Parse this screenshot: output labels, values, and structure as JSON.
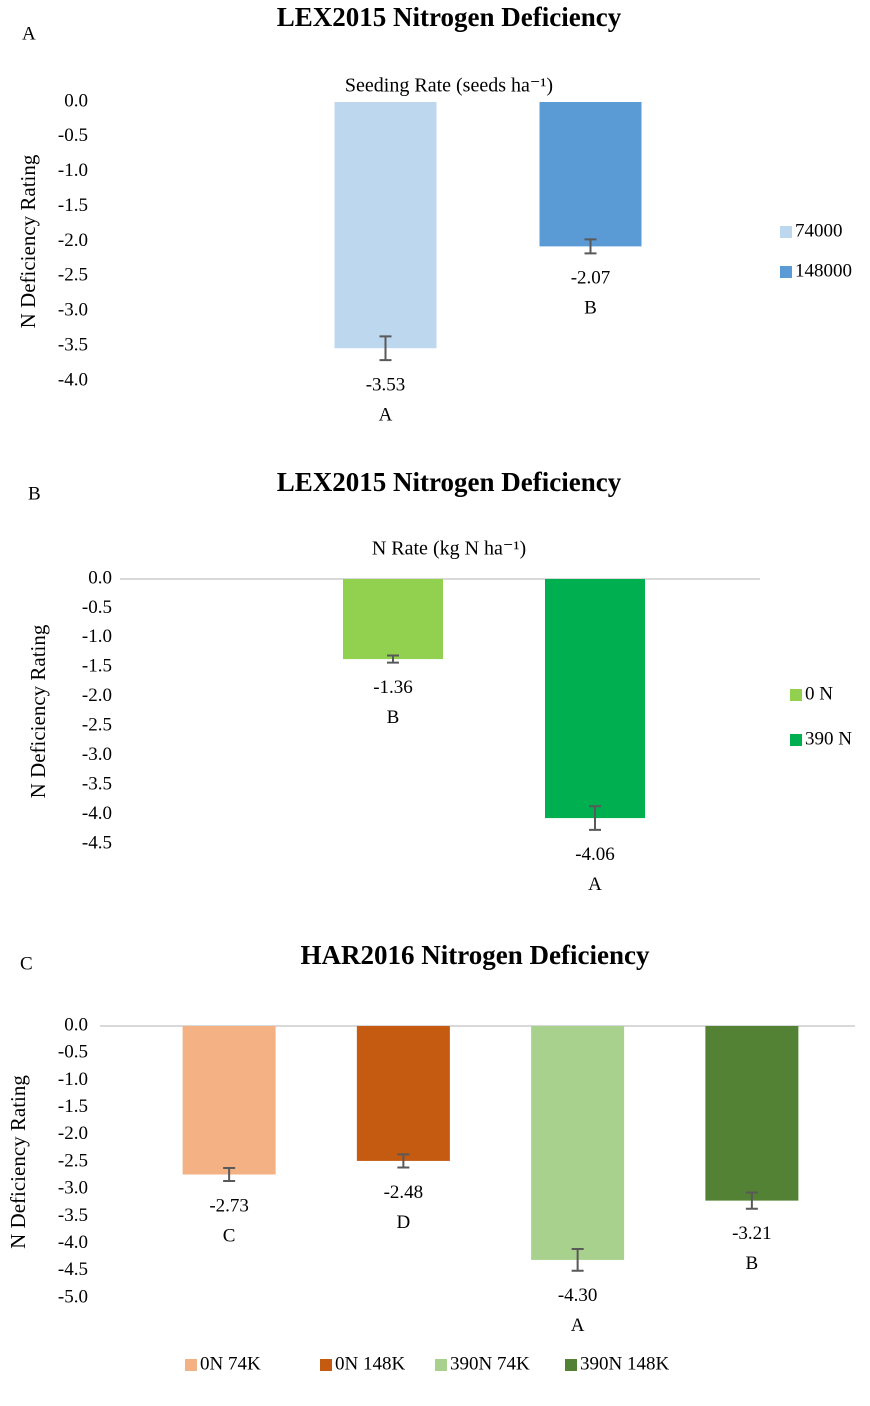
{
  "chart_data": [
    {
      "type": "bar",
      "panel": "A",
      "title": "LEX2015 Nitrogen Deficiency",
      "subtitle": "Seeding Rate (seeds ha⁻¹)",
      "ylabel": "N Deficiency Rating",
      "ylim": [
        -4,
        0
      ],
      "yticks": [
        {
          "value": 0,
          "label": "0.0"
        },
        {
          "value": -0.5,
          "label": "-0.5"
        },
        {
          "value": -1,
          "label": "-1.0"
        },
        {
          "value": -1.5,
          "label": "-1.5"
        },
        {
          "value": -2,
          "label": "-2.0"
        },
        {
          "value": -2.5,
          "label": "-2.5"
        },
        {
          "value": -3,
          "label": "-3.0"
        },
        {
          "value": -3.5,
          "label": "-3.5"
        },
        {
          "value": -4,
          "label": "-4.0"
        }
      ],
      "axis_line": false,
      "legend": "right",
      "series": [
        {
          "name": "74000",
          "color": "#bdd7ee",
          "values": [
            -3.53
          ],
          "errors": [
            0.17
          ],
          "value_labels": [
            "-3.53"
          ],
          "letters": [
            "A"
          ]
        },
        {
          "name": "148000",
          "color": "#5b9bd5",
          "values": [
            -2.07
          ],
          "errors": [
            0.1
          ],
          "value_labels": [
            "-2.07"
          ],
          "letters": [
            "B"
          ]
        }
      ]
    },
    {
      "type": "bar",
      "panel": "B",
      "title": "LEX2015 Nitrogen Deficiency",
      "subtitle": "N Rate (kg N ha⁻¹)",
      "ylabel": "N Deficiency Rating",
      "ylim": [
        -4.5,
        0
      ],
      "yticks": [
        {
          "value": 0,
          "label": "0.0"
        },
        {
          "value": -0.5,
          "label": "-0.5"
        },
        {
          "value": -1,
          "label": "-1.0"
        },
        {
          "value": -1.5,
          "label": "-1.5"
        },
        {
          "value": -2,
          "label": "-2.0"
        },
        {
          "value": -2.5,
          "label": "-2.5"
        },
        {
          "value": -3,
          "label": "-3.0"
        },
        {
          "value": -3.5,
          "label": "-3.5"
        },
        {
          "value": -4,
          "label": "-4.0"
        },
        {
          "value": -4.5,
          "label": "-4.5"
        }
      ],
      "axis_line": true,
      "legend": "right",
      "series": [
        {
          "name": "0 N",
          "color": "#92d050",
          "values": [
            -1.36
          ],
          "errors": [
            0.06
          ],
          "value_labels": [
            "-1.36"
          ],
          "letters": [
            "B"
          ]
        },
        {
          "name": "390 N",
          "color": "#00b050",
          "values": [
            -4.06
          ],
          "errors": [
            0.2
          ],
          "value_labels": [
            "-4.06"
          ],
          "letters": [
            "A"
          ]
        }
      ]
    },
    {
      "type": "bar",
      "panel": "C",
      "title": "HAR2016 Nitrogen Deficiency",
      "ylabel": "N Deficiency Rating",
      "ylim": [
        -5,
        0
      ],
      "yticks": [
        {
          "value": 0,
          "label": "0.0"
        },
        {
          "value": -0.5,
          "label": "-0.5"
        },
        {
          "value": -1,
          "label": "-1.0"
        },
        {
          "value": -1.5,
          "label": "-1.5"
        },
        {
          "value": -2,
          "label": "-2.0"
        },
        {
          "value": -2.5,
          "label": "-2.5"
        },
        {
          "value": -3,
          "label": "-3.0"
        },
        {
          "value": -3.5,
          "label": "-3.5"
        },
        {
          "value": -4,
          "label": "-4.0"
        },
        {
          "value": -4.5,
          "label": "-4.5"
        },
        {
          "value": -5,
          "label": "-5.0"
        }
      ],
      "axis_line": true,
      "legend": "bottom",
      "series": [
        {
          "name": "0N 74K",
          "color": "#f4b183",
          "values": [
            -2.73
          ],
          "errors": [
            0.12
          ],
          "value_labels": [
            "-2.73"
          ],
          "letters": [
            "C"
          ]
        },
        {
          "name": "0N 148K",
          "color": "#c55a11",
          "values": [
            -2.48
          ],
          "errors": [
            0.12
          ],
          "value_labels": [
            "-2.48"
          ],
          "letters": [
            "D"
          ]
        },
        {
          "name": "390N 74K",
          "color": "#a9d18e",
          "values": [
            -4.3
          ],
          "errors": [
            0.2
          ],
          "value_labels": [
            "-4.30"
          ],
          "letters": [
            "A"
          ]
        },
        {
          "name": "390N 148K",
          "color": "#548235",
          "values": [
            -3.21
          ],
          "errors": [
            0.15
          ],
          "value_labels": [
            "-3.21"
          ],
          "letters": [
            "B"
          ]
        }
      ]
    }
  ]
}
